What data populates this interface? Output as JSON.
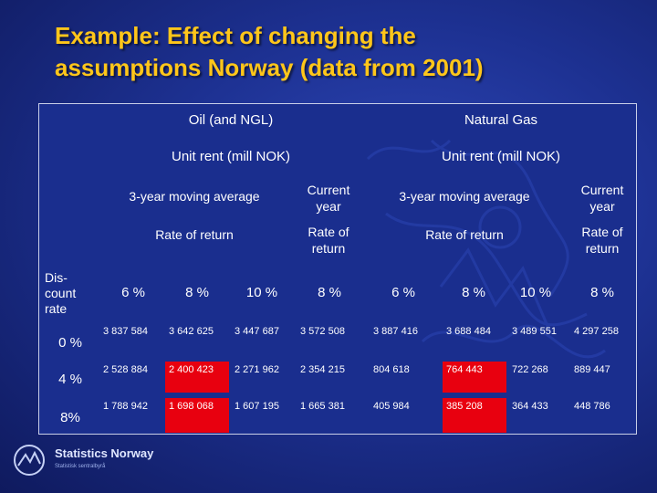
{
  "title": {
    "line1": "Example: Effect of changing the",
    "line2": "assumptions Norway (data from 2001)"
  },
  "table": {
    "groups": [
      "Oil (and NGL)",
      "Natural Gas"
    ],
    "unit_rent": [
      "Unit rent (mill NOK)",
      "Unit rent (mill NOK)"
    ],
    "avg_headers": [
      "3-year moving average",
      "3-year moving average"
    ],
    "current_year": [
      "Current year",
      "Current year"
    ],
    "rate_of_return": [
      "Rate of return",
      "Rate of return"
    ],
    "rate_of_return_short": [
      "Rate of return",
      "Rate of return"
    ],
    "discount_rate_label": "Dis-count rate",
    "rate_headers": [
      "6 %",
      "8 %",
      "10 %",
      "8 %",
      "6 %",
      "8 %",
      "10 %",
      "8 %"
    ],
    "rows": [
      {
        "discount": "0 %",
        "values": [
          "3 837 584",
          "3 642 625",
          "3 447 687",
          "3 572 508",
          "3 887 416",
          "3 688 484",
          "3 489 551",
          "4 297 258"
        ]
      },
      {
        "discount": "4 %",
        "values": [
          "2 528 884",
          "2 400 423",
          "2 271 962",
          "2 354 215",
          "804 618",
          "764 443",
          "722 268",
          "889 447"
        ]
      },
      {
        "discount": "8%",
        "values": [
          "1 788 942",
          "1 698 068",
          "1 607 195",
          "1 665 381",
          "405 984",
          "385 208",
          "364 433",
          "448 786"
        ]
      }
    ],
    "highlight_color": "#e8000f"
  },
  "logo": {
    "name": "Statistics Norway",
    "subtitle": "Statistisk sentralbyrå"
  },
  "colors": {
    "title": "#ffc61a",
    "background": "#1d3192",
    "panel": "#1a2e8e"
  }
}
